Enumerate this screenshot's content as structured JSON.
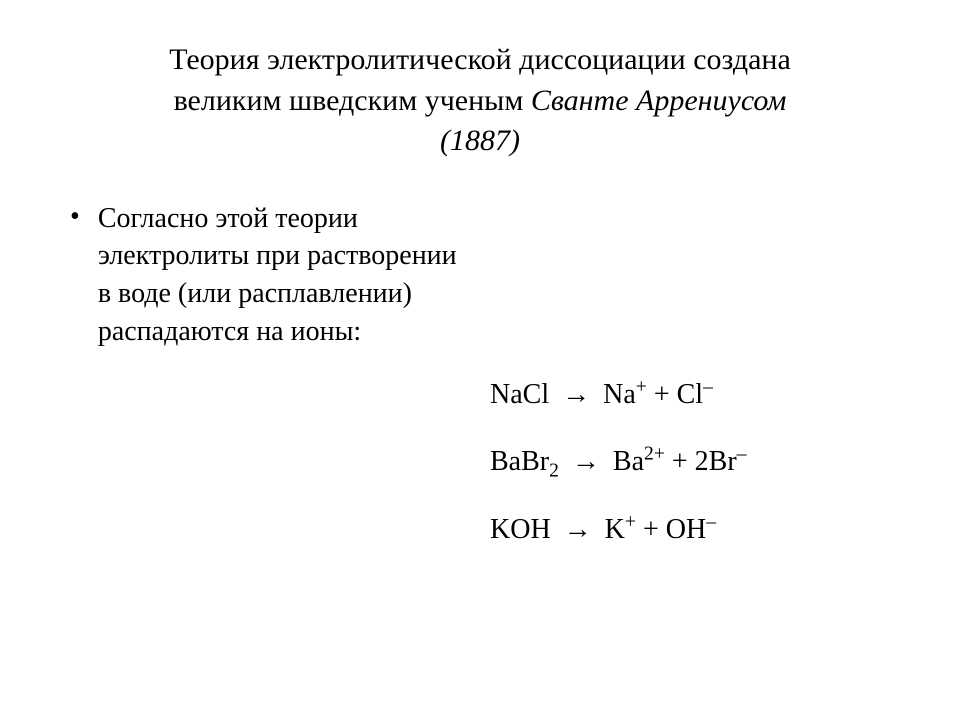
{
  "colors": {
    "background": "#ffffff",
    "text": "#000000"
  },
  "typography": {
    "family": "Times New Roman",
    "title_fontsize": 30,
    "body_fontsize": 28
  },
  "title": {
    "line1": "Теория электролитической диссоциации создана",
    "line2_plain": "великим шведским ученым ",
    "line2_italic": "Сванте Аррениусом",
    "line3_italic": "(1887)"
  },
  "bullet": {
    "marker": "•",
    "text": "Согласно этой теории электролиты при растворении в воде (или расплавлении) распадаются на ионы:"
  },
  "equations": {
    "arrow": "→",
    "eq1": {
      "lhs": "NaCl",
      "rhs_a": "Na",
      "rhs_a_sup": "+",
      "plus": " + ",
      "rhs_b": "Cl",
      "rhs_b_sup": "–"
    },
    "eq2": {
      "lhs": "BaBr",
      "lhs_sub": "2",
      "rhs_a": "Ba",
      "rhs_a_sup": "2+",
      "plus": " + 2",
      "rhs_b": "Br",
      "rhs_b_sup": "–"
    },
    "eq3": {
      "lhs": "KOH",
      "rhs_a": "K",
      "rhs_a_sup": "+",
      "plus": " + ",
      "rhs_b": "OH",
      "rhs_b_sup": "–"
    }
  }
}
